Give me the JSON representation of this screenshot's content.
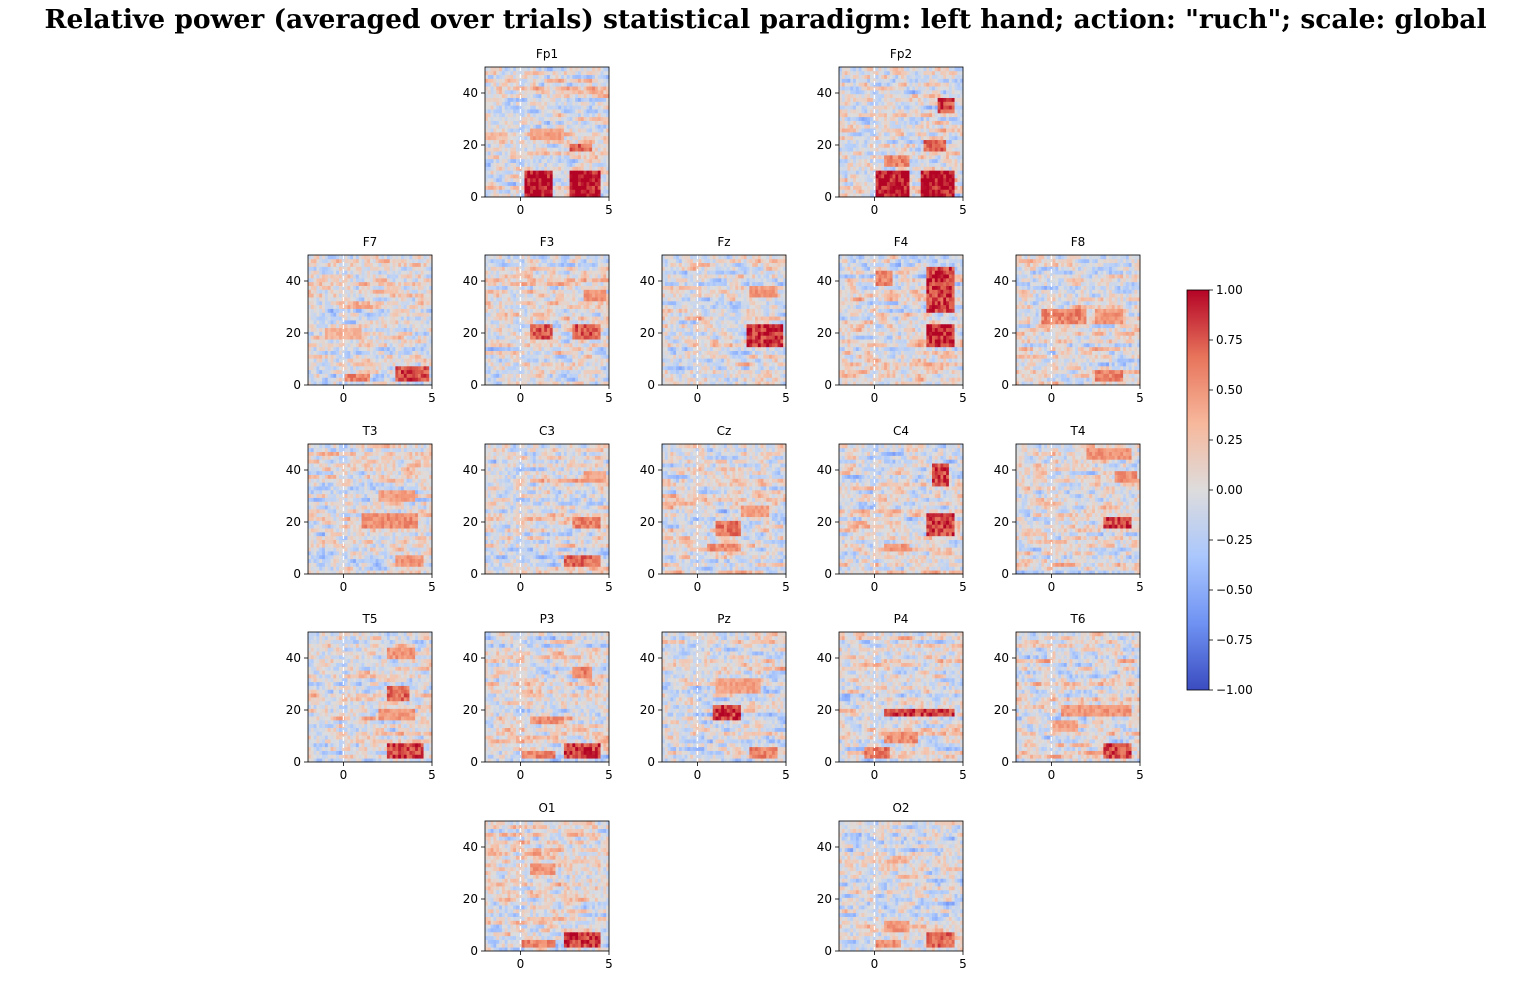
{
  "figure": {
    "title": "Relative power (averaged over trials) statistical paradigm: left hand; action: \"ruch\"; scale: global"
  },
  "chart_data": {
    "type": "heatmap",
    "title": "Relative power (averaged over trials) statistical paradigm: left hand; action: \"ruch\"; scale: global",
    "xlabel": "",
    "ylabel": "",
    "xlim": [
      -2,
      5
    ],
    "ylim": [
      0,
      50
    ],
    "x_ticks": [
      0,
      5
    ],
    "y_ticks": [
      0,
      20,
      40
    ],
    "event_marker_x": 0,
    "colormap": "coolwarm",
    "colorbar": {
      "min": -1.0,
      "max": 1.0,
      "ticks": [
        "1.00",
        "0.75",
        "0.50",
        "0.25",
        "0.00",
        "−0.25",
        "−0.50",
        "−0.75",
        "−1.00"
      ],
      "colors": [
        "#3b4cc0",
        "#6f92f3",
        "#aac7fd",
        "#dddcdc",
        "#f7b89c",
        "#e7745b",
        "#b40426"
      ]
    },
    "channels": [
      "Fp1",
      "Fp2",
      "F7",
      "F3",
      "Fz",
      "F4",
      "F8",
      "T3",
      "C3",
      "Cz",
      "C4",
      "T4",
      "T5",
      "P3",
      "Pz",
      "P4",
      "T6",
      "O1",
      "O2"
    ],
    "hotspots": {
      "Fp1": [
        [
          0.3,
          1.8,
          0,
          10,
          1.0
        ],
        [
          2.8,
          4.6,
          0,
          10,
          1.0
        ],
        [
          2.8,
          4.0,
          17,
          21,
          0.7
        ],
        [
          0.5,
          2.5,
          22,
          26,
          0.45
        ]
      ],
      "Fp2": [
        [
          0.0,
          2.0,
          0,
          10,
          1.0
        ],
        [
          2.6,
          4.6,
          0,
          10,
          1.0
        ],
        [
          3.5,
          4.5,
          32,
          38,
          0.8
        ],
        [
          2.8,
          4.0,
          17,
          22,
          0.7
        ],
        [
          0.5,
          2.0,
          12,
          16,
          0.6
        ]
      ],
      "F7": [
        [
          3.0,
          4.8,
          2,
          8,
          0.8
        ],
        [
          0.0,
          1.5,
          1,
          4,
          0.6
        ],
        [
          -1,
          1,
          18,
          22,
          0.35
        ]
      ],
      "F3": [
        [
          0.5,
          1.8,
          18,
          24,
          0.75
        ],
        [
          3.0,
          4.5,
          17,
          24,
          0.75
        ],
        [
          3.5,
          4.8,
          33,
          37,
          0.5
        ]
      ],
      "Fz": [
        [
          2.8,
          4.8,
          15,
          24,
          0.9
        ],
        [
          3.0,
          4.5,
          34,
          38,
          0.5
        ]
      ],
      "F4": [
        [
          3.0,
          4.6,
          15,
          24,
          0.95
        ],
        [
          3.0,
          4.6,
          28,
          46,
          0.85
        ],
        [
          0.0,
          1.0,
          38,
          44,
          0.6
        ]
      ],
      "F8": [
        [
          -0.5,
          2.0,
          24,
          30,
          0.6
        ],
        [
          2.5,
          4.0,
          24,
          30,
          0.5
        ],
        [
          2.5,
          4.0,
          2,
          6,
          0.6
        ]
      ],
      "T3": [
        [
          1.0,
          4.2,
          18,
          23,
          0.55
        ],
        [
          2.0,
          4.0,
          28,
          32,
          0.45
        ],
        [
          3.0,
          4.5,
          3,
          7,
          0.5
        ]
      ],
      "C3": [
        [
          2.5,
          4.5,
          3,
          8,
          0.7
        ],
        [
          3.0,
          4.5,
          17,
          22,
          0.6
        ],
        [
          3.5,
          4.8,
          35,
          40,
          0.45
        ]
      ],
      "Cz": [
        [
          1.0,
          2.5,
          15,
          20,
          0.65
        ],
        [
          0.5,
          2.5,
          9,
          12,
          0.55
        ],
        [
          2.5,
          4.0,
          22,
          26,
          0.45
        ]
      ],
      "C4": [
        [
          3.0,
          4.5,
          15,
          24,
          0.85
        ],
        [
          3.2,
          4.2,
          34,
          42,
          0.85
        ],
        [
          0.5,
          2.0,
          9,
          12,
          0.5
        ]
      ],
      "T4": [
        [
          3.0,
          4.5,
          17,
          22,
          0.85
        ],
        [
          3.5,
          4.8,
          35,
          40,
          0.55
        ],
        [
          2.0,
          4.5,
          44,
          48,
          0.5
        ]
      ],
      "T5": [
        [
          2.5,
          4.5,
          1,
          8,
          0.85
        ],
        [
          2.5,
          3.8,
          24,
          30,
          0.7
        ],
        [
          2.0,
          4.0,
          16,
          20,
          0.5
        ],
        [
          2.5,
          4.0,
          40,
          44,
          0.5
        ]
      ],
      "P3": [
        [
          2.5,
          4.5,
          1,
          7,
          0.85
        ],
        [
          0.5,
          2.5,
          15,
          18,
          0.55
        ],
        [
          3.0,
          4.0,
          32,
          37,
          0.6
        ],
        [
          0.0,
          2.0,
          1,
          4,
          0.6
        ]
      ],
      "Pz": [
        [
          0.8,
          2.5,
          16,
          22,
          0.85
        ],
        [
          3.0,
          4.5,
          2,
          6,
          0.6
        ],
        [
          1.0,
          3.5,
          26,
          32,
          0.45
        ]
      ],
      "P4": [
        [
          0.5,
          4.5,
          17,
          21,
          0.85
        ],
        [
          0.5,
          2.5,
          8,
          12,
          0.55
        ],
        [
          -0.5,
          0.8,
          2,
          6,
          0.65
        ]
      ],
      "T6": [
        [
          3.0,
          4.5,
          2,
          7,
          0.8
        ],
        [
          0.5,
          4.5,
          18,
          22,
          0.5
        ],
        [
          0.0,
          1.5,
          12,
          16,
          0.45
        ]
      ],
      "O1": [
        [
          2.5,
          4.6,
          1,
          8,
          0.85
        ],
        [
          0.5,
          2.0,
          30,
          34,
          0.5
        ],
        [
          0.0,
          2.0,
          2,
          5,
          0.6
        ]
      ],
      "O2": [
        [
          3.0,
          4.5,
          2,
          7,
          0.7
        ],
        [
          0.5,
          2.0,
          8,
          12,
          0.5
        ],
        [
          0.0,
          1.5,
          2,
          4,
          0.55
        ]
      ]
    }
  }
}
